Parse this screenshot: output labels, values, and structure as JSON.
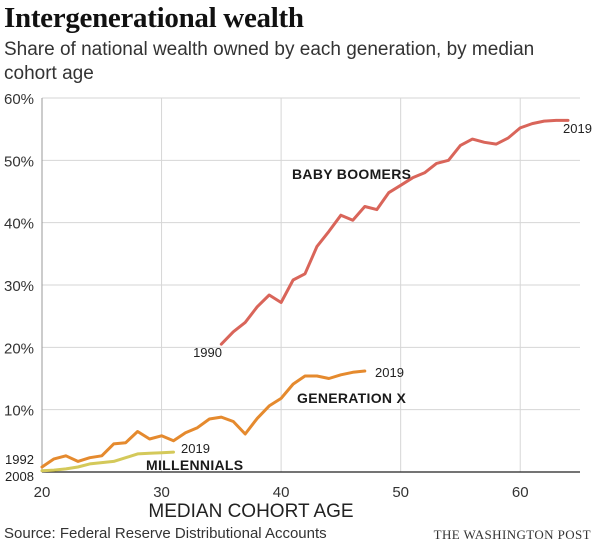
{
  "header": {
    "title": "Intergenerational wealth",
    "subtitle": "Share of national wealth owned by each generation, by median cohort age"
  },
  "footer": {
    "source": "Source: Federal Reserve Distributional Accounts",
    "credit": "THE WASHINGTON POST"
  },
  "chart_data": {
    "type": "line",
    "xlabel": "MEDIAN COHORT AGE",
    "ylabel": "",
    "xlim": [
      20,
      65
    ],
    "ylim": [
      0,
      60
    ],
    "x_ticks": [
      20,
      30,
      40,
      50,
      60
    ],
    "x_tick_labels": [
      "20",
      "30",
      "40",
      "50",
      "60"
    ],
    "y_ticks": [
      10,
      20,
      30,
      40,
      50,
      60
    ],
    "y_tick_labels": [
      "10%",
      "20%",
      "30%",
      "40%",
      "50%",
      "60%"
    ],
    "grid": true,
    "series": [
      {
        "name": "BABY BOOMERS",
        "color": "#d9655a",
        "start_label": "1990",
        "end_label": "2019",
        "x": [
          35,
          36,
          37,
          38,
          39,
          40,
          41,
          42,
          43,
          44,
          45,
          46,
          47,
          48,
          49,
          50,
          51,
          52,
          53,
          54,
          55,
          56,
          57,
          58,
          59,
          60,
          61,
          62,
          63,
          64
        ],
        "y": [
          20.5,
          22.5,
          24,
          26.5,
          28.4,
          27.2,
          30.8,
          31.8,
          36.2,
          38.6,
          41.2,
          40.4,
          42.6,
          42.1,
          44.8,
          46,
          47.2,
          48,
          49.5,
          50,
          52.4,
          53.4,
          52.9,
          52.6,
          53.6,
          55.2,
          55.9,
          56.3,
          56.4,
          56.4
        ]
      },
      {
        "name": "GENERATION X",
        "color": "#e58a2e",
        "start_label": "1992",
        "end_label": "2019",
        "x": [
          20,
          21,
          22,
          23,
          24,
          25,
          26,
          27,
          28,
          29,
          30,
          31,
          32,
          33,
          34,
          35,
          36,
          37,
          38,
          39,
          40,
          41,
          42,
          43,
          44,
          45,
          46,
          47
        ],
        "y": [
          0.8,
          2.1,
          2.6,
          1.7,
          2.3,
          2.6,
          4.5,
          4.7,
          6.5,
          5.3,
          5.8,
          5,
          6.3,
          7.1,
          8.5,
          8.8,
          8.1,
          6.1,
          8.6,
          10.6,
          11.8,
          14.1,
          15.4,
          15.4,
          15,
          15.6,
          16,
          16.2
        ]
      },
      {
        "name": "MILLENNIALS",
        "color": "#d4c95a",
        "start_label": "2008",
        "end_label": "2019",
        "x": [
          20,
          21,
          22,
          23,
          24,
          25,
          26,
          27,
          28,
          29,
          30,
          31
        ],
        "y": [
          0.2,
          0.3,
          0.5,
          0.8,
          1.3,
          1.5,
          1.7,
          2.3,
          2.9,
          3.0,
          3.1,
          3.2
        ]
      }
    ]
  }
}
